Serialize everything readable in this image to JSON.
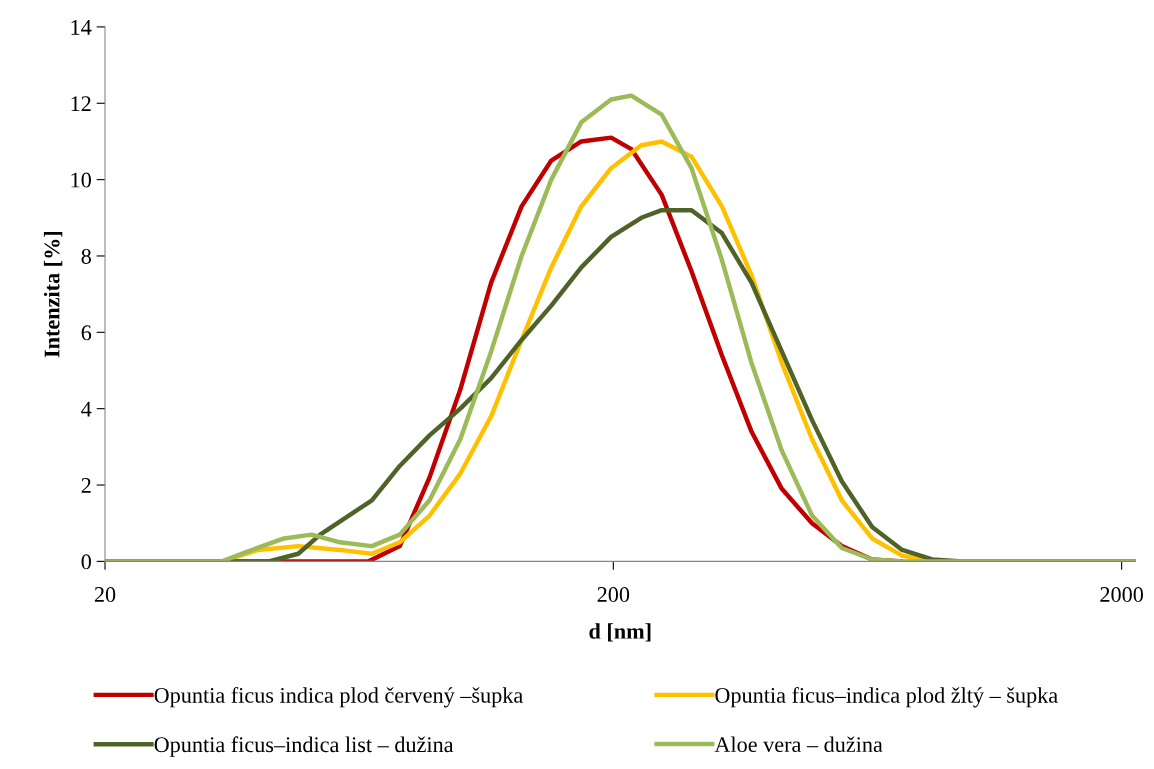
{
  "chart_data": {
    "type": "line",
    "xlabel": "d [nm]",
    "ylabel": "Intenzita [%]",
    "log": "x",
    "xlim": [
      20,
      2130
    ],
    "xticks": [
      20,
      200,
      2000
    ],
    "ylim": [
      0,
      14
    ],
    "yticks": [
      0,
      2,
      4,
      6,
      8,
      10,
      12,
      14
    ],
    "grid": false,
    "legend": "bottom",
    "marker": "none",
    "line_style": "solid",
    "series": [
      {
        "name": "Opuntia ficus indica plod červený –šupka",
        "color": "#c00000",
        "x": [
          20,
          40,
          66,
          76,
          87,
          100,
          115,
          132,
          151,
          173,
          198,
          217,
          249,
          285,
          327,
          374,
          429,
          492,
          563,
          646,
          740
        ],
        "values": [
          0,
          0,
          0,
          0.4,
          2.2,
          4.5,
          7.3,
          9.3,
          10.5,
          11.0,
          11.1,
          10.8,
          9.6,
          7.6,
          5.4,
          3.4,
          1.9,
          1.0,
          0.4,
          0.05,
          0
        ]
      },
      {
        "name": "Opuntia ficus–indica plod žltý – šupka",
        "color": "#ffc000",
        "x": [
          20,
          34,
          40,
          48,
          58,
          67,
          76,
          87,
          100,
          115,
          132,
          151,
          173,
          198,
          227,
          249,
          285,
          327,
          374,
          429,
          492,
          563,
          646,
          740,
          848,
          2130
        ],
        "values": [
          0,
          0,
          0.3,
          0.4,
          0.3,
          0.2,
          0.5,
          1.2,
          2.3,
          3.8,
          5.8,
          7.7,
          9.3,
          10.3,
          10.9,
          11.0,
          10.6,
          9.3,
          7.5,
          5.2,
          3.2,
          1.6,
          0.6,
          0.15,
          0,
          0
        ]
      },
      {
        "name": "Opuntia ficus–indica list – dužina",
        "color": "#4f6228",
        "x": [
          20,
          42,
          48,
          53,
          67,
          76,
          87,
          100,
          115,
          132,
          151,
          173,
          198,
          227,
          249,
          285,
          327,
          374,
          429,
          492,
          563,
          646,
          740,
          848,
          972,
          2130
        ],
        "values": [
          0,
          0,
          0.2,
          0.7,
          1.6,
          2.5,
          3.3,
          4.0,
          4.8,
          5.8,
          6.7,
          7.7,
          8.5,
          9.0,
          9.2,
          9.2,
          8.6,
          7.3,
          5.5,
          3.7,
          2.1,
          0.9,
          0.3,
          0.05,
          0,
          0
        ]
      },
      {
        "name": "Aloe vera – dužina",
        "color": "#9bbb59",
        "x": [
          20,
          34,
          38,
          45,
          51,
          58,
          67,
          76,
          87,
          100,
          115,
          132,
          151,
          173,
          198,
          217,
          249,
          285,
          327,
          374,
          429,
          492,
          563,
          646,
          740,
          2130
        ],
        "values": [
          0,
          0,
          0.25,
          0.6,
          0.7,
          0.5,
          0.4,
          0.7,
          1.6,
          3.2,
          5.5,
          8.0,
          10.0,
          11.5,
          12.1,
          12.2,
          11.7,
          10.3,
          7.9,
          5.2,
          2.9,
          1.2,
          0.35,
          0.05,
          0,
          0
        ]
      }
    ]
  }
}
